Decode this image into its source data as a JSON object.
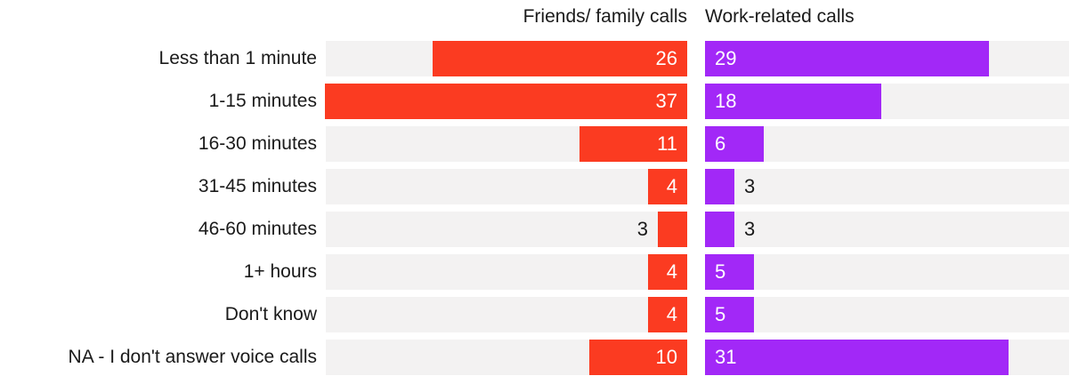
{
  "chart_data": {
    "type": "bar",
    "variant": "paired-horizontal-diverging",
    "title": "",
    "categories": [
      "Less than 1 minute",
      "1-15 minutes",
      "16-30 minutes",
      "31-45 minutes",
      "46-60 minutes",
      "1+ hours",
      "Don't know",
      "NA - I don't answer voice calls"
    ],
    "series": [
      {
        "name": "Friends/ family calls",
        "color": "#fb3b21",
        "align": "right",
        "values": [
          26,
          37,
          11,
          4,
          3,
          4,
          4,
          10
        ]
      },
      {
        "name": "Work-related calls",
        "color": "#a228f7",
        "align": "left",
        "values": [
          29,
          18,
          6,
          3,
          3,
          5,
          5,
          31
        ]
      }
    ],
    "xlim": [
      0,
      37
    ],
    "grid": false,
    "legend_position": "top",
    "track_color": "#f3f2f2",
    "value_label_color_inside": "#ffffff",
    "value_label_color_outside": "#1a1a1a",
    "value_labels": "shown"
  }
}
